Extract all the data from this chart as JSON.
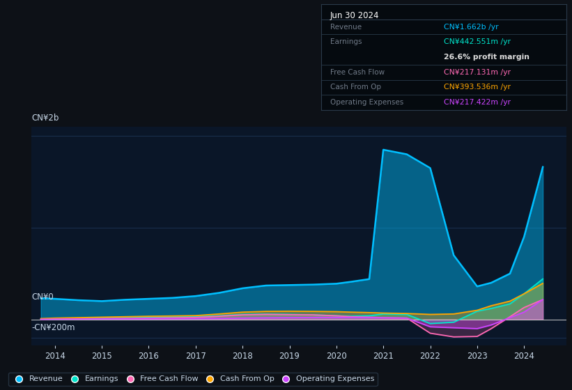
{
  "bg_color": "#0d1117",
  "plot_bg_color": "#0a1628",
  "title_box": {
    "date": "Jun 30 2024",
    "rows": [
      {
        "label": "Revenue",
        "value": "CN¥1.662b /yr",
        "value_color": "#00bfff",
        "bold_value": false
      },
      {
        "label": "Earnings",
        "value": "CN¥442.551m /yr",
        "value_color": "#00e5cc",
        "bold_value": false
      },
      {
        "label": "",
        "value": "26.6% profit margin",
        "value_color": "#dddddd",
        "bold_value": true
      },
      {
        "label": "Free Cash Flow",
        "value": "CN¥217.131m /yr",
        "value_color": "#ff69b4",
        "bold_value": false
      },
      {
        "label": "Cash From Op",
        "value": "CN¥393.536m /yr",
        "value_color": "#ffa500",
        "bold_value": false
      },
      {
        "label": "Operating Expenses",
        "value": "CN¥217.422m /yr",
        "value_color": "#cc44ff",
        "bold_value": false
      }
    ]
  },
  "ylabel_top": "CN¥2b",
  "ylabel_zero": "CN¥0",
  "ylabel_neg": "-CN¥200m",
  "years": [
    2013.7,
    2014,
    2014.5,
    2015,
    2015.5,
    2016,
    2016.5,
    2017,
    2017.5,
    2018,
    2018.5,
    2019,
    2019.5,
    2020,
    2020.3,
    2020.7,
    2021,
    2021.5,
    2022,
    2022.5,
    2023,
    2023.3,
    2023.7,
    2024,
    2024.4
  ],
  "revenue": [
    230,
    225,
    210,
    200,
    215,
    225,
    235,
    255,
    290,
    340,
    370,
    375,
    380,
    390,
    410,
    440,
    1850,
    1800,
    1650,
    700,
    360,
    400,
    500,
    900,
    1662
  ],
  "earnings": [
    5,
    8,
    12,
    15,
    20,
    22,
    28,
    30,
    40,
    55,
    58,
    55,
    50,
    40,
    35,
    40,
    60,
    55,
    -45,
    -30,
    90,
    120,
    170,
    280,
    442
  ],
  "free_cash_flow": [
    2,
    5,
    8,
    10,
    12,
    15,
    18,
    22,
    35,
    50,
    55,
    52,
    50,
    40,
    30,
    25,
    20,
    15,
    -150,
    -190,
    -185,
    -100,
    30,
    130,
    217
  ],
  "cash_from_op": [
    10,
    15,
    20,
    25,
    30,
    35,
    38,
    42,
    60,
    80,
    88,
    90,
    88,
    85,
    80,
    75,
    70,
    65,
    55,
    60,
    100,
    150,
    200,
    280,
    394
  ],
  "operating_expenses": [
    2,
    3,
    4,
    5,
    5,
    6,
    8,
    10,
    12,
    15,
    18,
    20,
    22,
    22,
    22,
    20,
    18,
    15,
    -80,
    -90,
    -100,
    -60,
    20,
    80,
    217
  ],
  "colors": {
    "revenue": "#00bfff",
    "earnings": "#00e5cc",
    "free_cash_flow": "#ff69b4",
    "cash_from_op": "#ffa500",
    "operating_expenses": "#cc44ff"
  },
  "legend_items": [
    {
      "label": "Revenue",
      "color": "#00bfff"
    },
    {
      "label": "Earnings",
      "color": "#00e5cc"
    },
    {
      "label": "Free Cash Flow",
      "color": "#ff69b4"
    },
    {
      "label": "Cash From Op",
      "color": "#ffa500"
    },
    {
      "label": "Operating Expenses",
      "color": "#cc44ff"
    }
  ],
  "xlim": [
    2013.5,
    2024.9
  ],
  "ylim": [
    -280,
    2100
  ],
  "xticks": [
    2014,
    2015,
    2016,
    2017,
    2018,
    2019,
    2020,
    2021,
    2022,
    2023,
    2024
  ],
  "grid_color": "#1a3050",
  "zero_line_color": "#cccccc",
  "text_color_dim": "#707a88",
  "text_color_bright": "#c8d8e8"
}
